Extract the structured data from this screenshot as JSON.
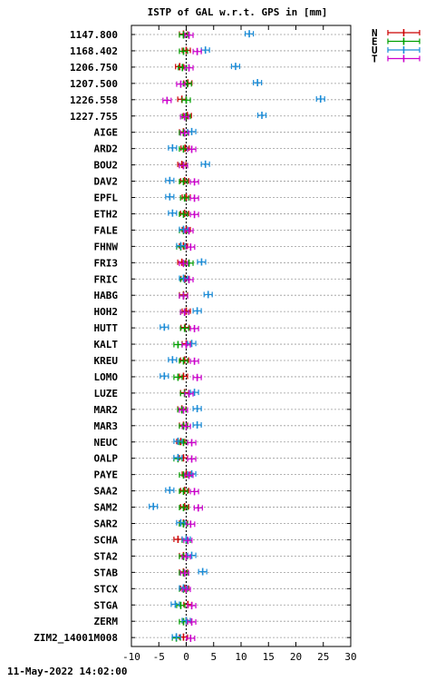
{
  "chart_data": {
    "type": "scatter",
    "title": "ISTP of GAL w.r.t. GPS in [mm]",
    "footer": "11-May-2022 14:02:00",
    "xlim": [
      -10,
      30
    ],
    "x_ticks": [
      -10,
      -5,
      0,
      5,
      10,
      15,
      20,
      25,
      30
    ],
    "grid": true,
    "legend_position": "top-right",
    "categories": [
      "1147.800",
      "1168.402",
      "1206.750",
      "1207.500",
      "1226.558",
      "1227.755",
      "AIGE",
      "ARD2",
      "BOU2",
      "DAV2",
      "EPFL",
      "ETH2",
      "FALE",
      "FHNW",
      "FRI3",
      "FRIC",
      "HABG",
      "HOH2",
      "HUTT",
      "KALT",
      "KREU",
      "LOMO",
      "LUZE",
      "MAR2",
      "MAR3",
      "NEUC",
      "OALP",
      "PAYE",
      "SAA2",
      "SAM2",
      "SAR2",
      "SCHA",
      "STA2",
      "STAB",
      "STCX",
      "STGA",
      "ZERM",
      "ZIM2_14001M008"
    ],
    "series": [
      {
        "name": "N",
        "color": "#cc0000",
        "values": [
          -0.5,
          0.0,
          -1.2,
          0.3,
          -0.8,
          0.2,
          -0.5,
          -0.2,
          -0.8,
          -0.3,
          0.0,
          -0.3,
          0.0,
          -0.5,
          -0.8,
          -0.2,
          -0.5,
          0.0,
          -0.2,
          0.0,
          -0.3,
          -0.5,
          -0.3,
          -0.8,
          -0.5,
          -1.0,
          -0.5,
          0.0,
          -0.3,
          -0.3,
          -0.5,
          -1.5,
          -0.5,
          -0.5,
          -0.3,
          0.3,
          0.0,
          -0.5
        ]
      },
      {
        "name": "E",
        "color": "#00a000",
        "values": [
          -0.5,
          -0.5,
          -0.7,
          0.2,
          0.0,
          0.0,
          -0.5,
          -0.5,
          -0.5,
          -0.5,
          -0.3,
          -0.5,
          -0.5,
          -1.0,
          0.5,
          -0.3,
          -0.5,
          -0.3,
          -0.3,
          -1.5,
          -0.5,
          -1.5,
          -0.3,
          -0.8,
          -0.5,
          -0.5,
          -1.5,
          -0.5,
          -0.5,
          -0.5,
          -0.5,
          0.0,
          -0.5,
          -0.5,
          -0.5,
          -1.0,
          -0.5,
          -1.8
        ]
      },
      {
        "name": "U",
        "color": "#1a8cd8",
        "values": [
          11.5,
          3.5,
          9.0,
          13.0,
          24.5,
          13.8,
          1.0,
          -2.5,
          3.5,
          -3.0,
          -3.0,
          -2.5,
          -0.5,
          -1.0,
          2.8,
          -0.5,
          4.0,
          2.0,
          -4.0,
          1.0,
          -2.5,
          -4.0,
          1.5,
          2.0,
          2.0,
          -1.5,
          -1.5,
          1.0,
          -3.0,
          -6.0,
          -1.0,
          0.0,
          1.0,
          3.0,
          -0.5,
          -2.0,
          0.0,
          -1.8
        ]
      },
      {
        "name": "T",
        "color": "#cc00cc",
        "values": [
          0.5,
          2.0,
          0.5,
          -1.0,
          -3.5,
          -0.3,
          -0.3,
          1.0,
          -0.5,
          1.5,
          1.5,
          1.5,
          0.5,
          0.8,
          -0.5,
          0.5,
          -0.5,
          -0.3,
          1.5,
          0.0,
          1.5,
          2.0,
          0.5,
          -0.5,
          0.0,
          1.0,
          1.0,
          0.5,
          1.5,
          2.2,
          0.8,
          0.3,
          0.0,
          -0.3,
          0.0,
          1.0,
          1.0,
          0.8
        ]
      }
    ]
  }
}
